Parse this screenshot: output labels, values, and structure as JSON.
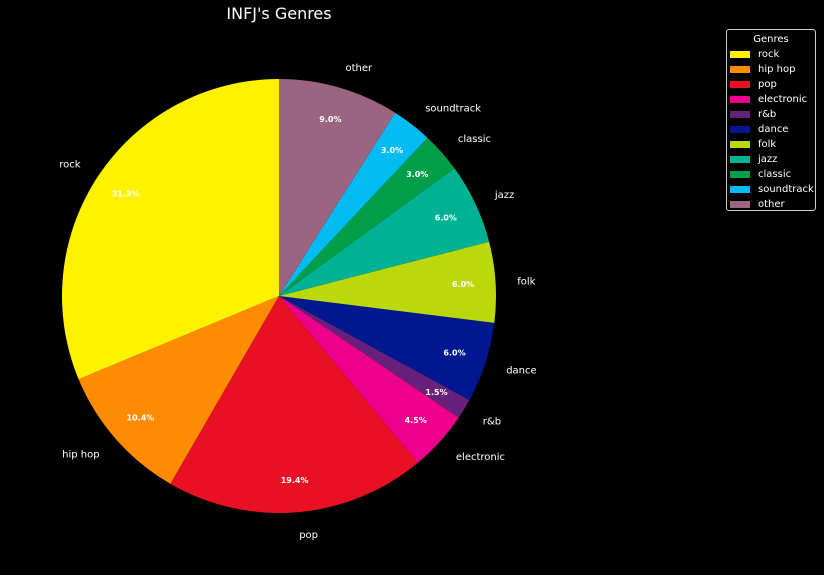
{
  "chart_data": {
    "type": "pie",
    "title": "INFJ's Genres",
    "legend_title": "Genres",
    "legend_position": "top-right",
    "slices": [
      {
        "label": "rock",
        "value": 31.3,
        "pct_label": "31.3%",
        "color": "#FFF200"
      },
      {
        "label": "hip hop",
        "value": 10.4,
        "pct_label": "10.4%",
        "color": "#FF8C00"
      },
      {
        "label": "pop",
        "value": 19.4,
        "pct_label": "19.4%",
        "color": "#E81123"
      },
      {
        "label": "electronic",
        "value": 4.5,
        "pct_label": "4.5%",
        "color": "#EC008C"
      },
      {
        "label": "r&b",
        "value": 1.5,
        "pct_label": "1.5%",
        "color": "#68217A"
      },
      {
        "label": "dance",
        "value": 6.0,
        "pct_label": "6.0%",
        "color": "#00188F"
      },
      {
        "label": "folk",
        "value": 6.0,
        "pct_label": "6.0%",
        "color": "#BAD80A"
      },
      {
        "label": "jazz",
        "value": 6.0,
        "pct_label": "6.0%",
        "color": "#00B294"
      },
      {
        "label": "classic",
        "value": 3.0,
        "pct_label": "3.0%",
        "color": "#009E49"
      },
      {
        "label": "soundtrack",
        "value": 3.0,
        "pct_label": "3.0%",
        "color": "#00BCF2"
      },
      {
        "label": "other",
        "value": 9.0,
        "pct_label": "9.0%",
        "color": "#9B6480"
      }
    ]
  }
}
